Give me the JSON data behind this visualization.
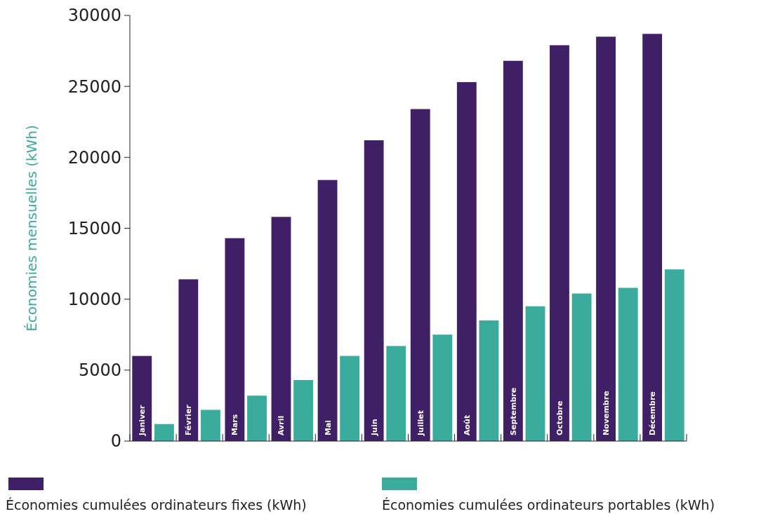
{
  "chart_data": {
    "type": "bar",
    "ylabel": "Économies mensuelles (kWh)",
    "categories": [
      "Janiver",
      "Février",
      "Mars",
      "Avril",
      "Mai",
      "Juin",
      "Juillet",
      "Août",
      "Septembre",
      "Octobre",
      "Novembre",
      "Décembre"
    ],
    "series": [
      {
        "name": "Économies cumulées ordinateurs fixes (kWh)",
        "color": "#3f1f66",
        "values": [
          6000,
          11400,
          14300,
          15800,
          18400,
          21200,
          23400,
          25300,
          26800,
          27900,
          28500,
          28700
        ]
      },
      {
        "name": "Économies cumulées ordinateurs portables (kWh)",
        "color": "#3aab9c",
        "values": [
          1200,
          2200,
          3200,
          4300,
          6000,
          6700,
          7500,
          8500,
          9500,
          10400,
          10800,
          12100
        ]
      }
    ],
    "ylim": [
      0,
      30000
    ],
    "yticks": [
      0,
      5000,
      10000,
      15000,
      20000,
      25000,
      30000
    ],
    "legend": "bottom",
    "grid": false
  }
}
